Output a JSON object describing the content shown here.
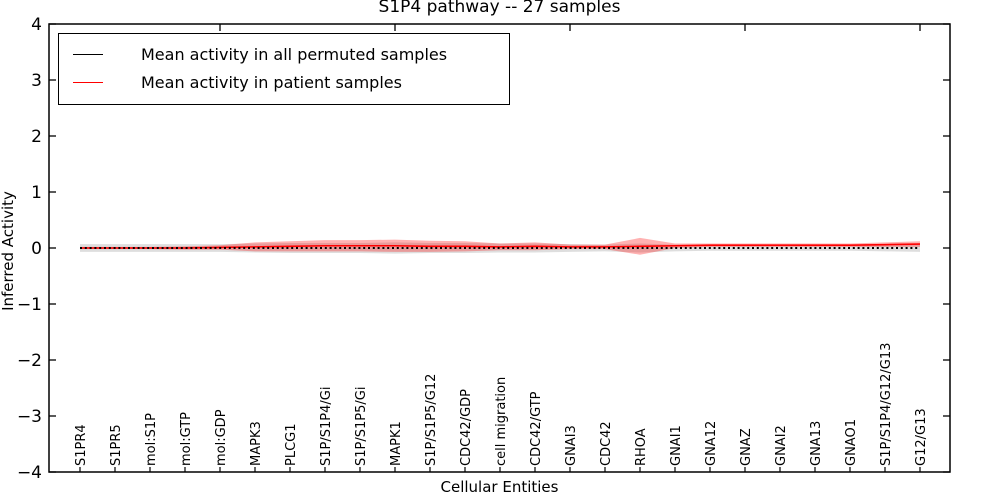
{
  "title": "S1P4 pathway -- 27 samples",
  "axes": {
    "xlabel": "Cellular Entities",
    "ylabel": "Inferred Activity",
    "yticks": [
      "4",
      "3",
      "2",
      "1",
      "0",
      "−1",
      "−2",
      "−3",
      "−4"
    ]
  },
  "legend": {
    "items": [
      {
        "label": "Mean activity in all permuted samples",
        "color": "#000000",
        "style": "solid"
      },
      {
        "label": "Mean activity in patient samples",
        "color": "#ff0000",
        "style": "solid"
      }
    ]
  },
  "chart_data": {
    "type": "line",
    "title": "S1P4 pathway -- 27 samples",
    "xlabel": "Cellular Entities",
    "ylabel": "Inferred Activity",
    "ylim": [
      -4,
      4
    ],
    "grid": false,
    "legend_position": "upper left",
    "top_tick_positions": [
      5,
      10,
      15,
      20,
      25
    ],
    "categories": [
      "S1PR4",
      "S1PR5",
      "mol:S1P",
      "mol:GTP",
      "mol:GDP",
      "MAPK3",
      "PLCG1",
      "S1P/S1P4/Gi",
      "S1P/S1P5/Gi",
      "MAPK1",
      "S1P/S1P5/G12",
      "CDC42/GDP",
      "cell migration",
      "CDC42/GTP",
      "GNAI3",
      "CDC42",
      "RHOA",
      "GNAI1",
      "GNA12",
      "GNAZ",
      "GNAI2",
      "GNA13",
      "GNAO1",
      "S1P/S1P4/G12/G13",
      "G12/G13"
    ],
    "series": [
      {
        "name": "Mean activity in all permuted samples",
        "color": "#000000",
        "line_style": "dotted",
        "values": [
          0,
          0,
          0,
          0,
          0,
          0,
          0,
          0,
          0,
          0,
          0,
          0,
          0,
          0,
          0,
          0,
          0,
          0,
          0,
          0,
          0,
          0,
          0,
          0,
          0
        ],
        "band_halfwidth": [
          0.07,
          0.07,
          0.07,
          0.07,
          0.07,
          0.08,
          0.09,
          0.09,
          0.09,
          0.1,
          0.09,
          0.09,
          0.08,
          0.08,
          0.07,
          0.06,
          0.08,
          0.06,
          0.05,
          0.05,
          0.05,
          0.05,
          0.05,
          0.06,
          0.07
        ],
        "band_color": "rgba(0,0,0,0.13)"
      },
      {
        "name": "Mean activity in patient samples",
        "color": "#ff0000",
        "line_style": "solid",
        "values": [
          0.0,
          0.0,
          0.0,
          0.0,
          0.01,
          0.02,
          0.03,
          0.04,
          0.04,
          0.04,
          0.03,
          0.03,
          0.02,
          0.03,
          0.02,
          0.02,
          0.03,
          0.04,
          0.05,
          0.05,
          0.05,
          0.05,
          0.05,
          0.06,
          0.07
        ],
        "band_halfwidth": [
          0.02,
          0.02,
          0.02,
          0.03,
          0.04,
          0.08,
          0.09,
          0.1,
          0.1,
          0.11,
          0.1,
          0.09,
          0.06,
          0.07,
          0.04,
          0.04,
          0.15,
          0.04,
          0.03,
          0.03,
          0.03,
          0.03,
          0.03,
          0.04,
          0.05
        ],
        "band_color": "rgba(255,0,0,0.30)"
      }
    ]
  }
}
